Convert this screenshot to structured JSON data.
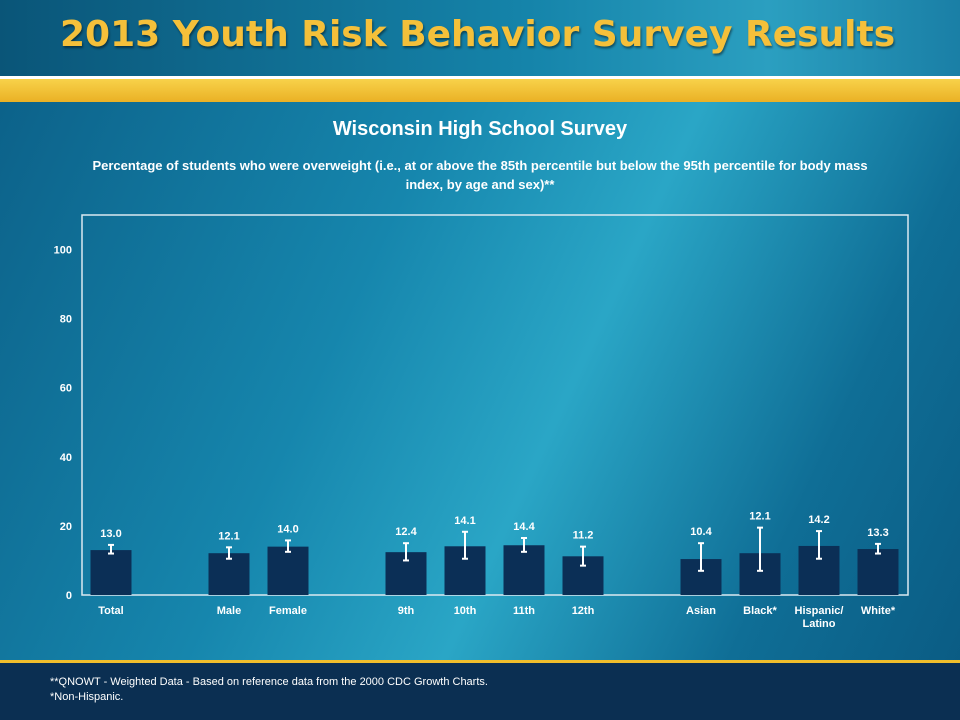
{
  "header": {
    "title": "2013 Youth Risk Behavior Survey Results"
  },
  "chart_data": {
    "type": "bar",
    "title": "Wisconsin High School Survey",
    "subtitle": "Percentage of students who were overweight (i.e., at or above the 85th percentile but below the 95th percentile for body mass index, by age and sex)**",
    "xlabel": "",
    "ylabel": "",
    "ylim": [
      0,
      110
    ],
    "yticks": [
      0,
      20,
      40,
      60,
      80,
      100
    ],
    "grid": false,
    "categories": [
      {
        "label": "Total",
        "value": 13.0,
        "ci": [
          12.0,
          14.5
        ],
        "group": 0
      },
      {
        "label": "Male",
        "value": 12.1,
        "ci": [
          10.5,
          13.8
        ],
        "group": 1
      },
      {
        "label": "Female",
        "value": 14.0,
        "ci": [
          12.5,
          15.8
        ],
        "group": 1
      },
      {
        "label": "9th",
        "value": 12.4,
        "ci": [
          10.0,
          15.0
        ],
        "group": 2
      },
      {
        "label": "10th",
        "value": 14.1,
        "ci": [
          10.5,
          18.3
        ],
        "group": 2
      },
      {
        "label": "11th",
        "value": 14.4,
        "ci": [
          12.5,
          16.5
        ],
        "group": 2
      },
      {
        "label": "12th",
        "value": 11.2,
        "ci": [
          8.5,
          14.0
        ],
        "group": 2
      },
      {
        "label": "Asian",
        "value": 10.4,
        "ci": [
          7.0,
          15.0
        ],
        "group": 3
      },
      {
        "label": "Black*",
        "value": 12.1,
        "ci": [
          7.0,
          19.5
        ],
        "group": 3
      },
      {
        "label": "Hispanic/ Latino",
        "value": 14.2,
        "ci": [
          10.5,
          18.5
        ],
        "group": 3
      },
      {
        "label": "White*",
        "value": 13.3,
        "ci": [
          12.0,
          14.8
        ],
        "group": 3
      }
    ]
  },
  "footnotes": [
    "**QNOWT - Weighted Data - Based on reference data from the 2000 CDC Growth Charts.",
    "*Non-Hispanic."
  ],
  "colors": {
    "bar": "#0b2f56",
    "title_gold": "#f5c03a",
    "accent_gold": "#f1be2c"
  }
}
